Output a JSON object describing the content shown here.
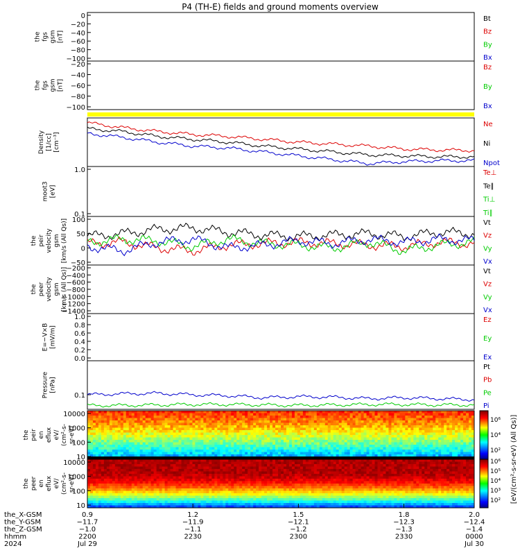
{
  "chart_data": {
    "type": "line",
    "title": "P4 (TH-E) fields and ground moments overview",
    "colors": {
      "black": "#000000",
      "red": "#dd0000",
      "green": "#00cc00",
      "blue": "#0000cc",
      "yellow": "#ffff00",
      "spectrogram": "jet"
    },
    "panels": [
      {
        "id": "fgs-gsm-1",
        "type": "line",
        "ylabel": [
          "the",
          "fgs",
          "gsm",
          "[nT]"
        ],
        "yticks": [
          "0",
          "−20",
          "−40",
          "−60",
          "−80",
          "−100"
        ],
        "ylim": [
          -100,
          0
        ],
        "legend": [
          {
            "name": "Bt",
            "color": "black"
          },
          {
            "name": "Bz",
            "color": "red"
          },
          {
            "name": "By",
            "color": "green"
          },
          {
            "name": "Bx",
            "color": "blue"
          }
        ],
        "series": []
      },
      {
        "id": "fgs-gsm-2",
        "type": "line",
        "ylabel": [
          "the",
          "fgs",
          "gsm",
          "[nT]"
        ],
        "yticks": [
          "−20",
          "−40",
          "−60",
          "−80",
          "−100"
        ],
        "ylim": [
          -110,
          0
        ],
        "legend": [
          {
            "name": "Bz",
            "color": "red"
          },
          {
            "name": "By",
            "color": "green"
          },
          {
            "name": "Bx",
            "color": "blue"
          }
        ],
        "series": []
      },
      {
        "id": "flag-bar",
        "type": "bar",
        "ylabel": [],
        "yticks": [],
        "legend": [],
        "series": [
          {
            "color": "yellow",
            "value": 1
          }
        ]
      },
      {
        "id": "density",
        "type": "line",
        "ylabel": [
          "Density",
          "[1/cc]",
          "[cm⁻³]"
        ],
        "yticks": [],
        "log": true,
        "legend": [
          {
            "name": "Ne",
            "color": "red"
          },
          {
            "name": "Ni",
            "color": "black"
          },
          {
            "name": "Npot",
            "color": "blue"
          }
        ],
        "series": [
          {
            "color": "red",
            "x": [
              0.9,
              1.0,
              1.1,
              1.2,
              1.3,
              1.4,
              1.5,
              1.6,
              1.7,
              1.8,
              1.9,
              2.0
            ],
            "y": [
              0.9,
              0.8,
              0.72,
              0.66,
              0.62,
              0.56,
              0.5,
              0.46,
              0.42,
              0.36,
              0.34,
              0.33
            ]
          },
          {
            "color": "black",
            "x": [
              0.9,
              1.0,
              1.1,
              1.2,
              1.3,
              1.4,
              1.5,
              1.6,
              1.7,
              1.8,
              1.9,
              2.0
            ],
            "y": [
              0.78,
              0.72,
              0.62,
              0.56,
              0.5,
              0.42,
              0.36,
              0.3,
              0.24,
              0.22,
              0.2,
              0.2
            ]
          },
          {
            "color": "blue",
            "x": [
              0.9,
              1.0,
              1.1,
              1.2,
              1.3,
              1.4,
              1.5,
              1.6,
              1.7,
              1.8,
              1.9,
              2.0
            ],
            "y": [
              0.68,
              0.6,
              0.5,
              0.42,
              0.38,
              0.3,
              0.22,
              0.14,
              0.06,
              0.1,
              0.12,
              0.12
            ]
          }
        ]
      },
      {
        "id": "temperature",
        "type": "line",
        "ylabel": [
          "moot3",
          "[eV]"
        ],
        "yticks": [
          "1.0",
          "0.1"
        ],
        "log": true,
        "legend": [
          {
            "name": "Te⊥",
            "color": "red"
          },
          {
            "name": "Te∥",
            "color": "black"
          },
          {
            "name": "Ti⊥",
            "color": "green"
          },
          {
            "name": "Ti∥",
            "color": "green"
          }
        ],
        "series": []
      },
      {
        "id": "peir-velocity",
        "type": "line",
        "ylabel": [
          "the",
          "peir",
          "velocity",
          "gsm",
          "[km/s (All Qs)]"
        ],
        "yticks": [
          "100",
          "50",
          "0",
          "−50"
        ],
        "ylim": [
          -70,
          100
        ],
        "legend": [
          {
            "name": "Vt",
            "color": "black"
          },
          {
            "name": "Vz",
            "color": "red"
          },
          {
            "name": "Vy",
            "color": "green"
          },
          {
            "name": "Vx",
            "color": "blue"
          }
        ],
        "series": [
          {
            "color": "black",
            "x": [
              0.9,
              1.0,
              1.1,
              1.2,
              1.3,
              1.4,
              1.5,
              1.6,
              1.7,
              1.8,
              1.9,
              2.0
            ],
            "y": [
              30,
              40,
              55,
              60,
              45,
              35,
              30,
              35,
              40,
              30,
              45,
              40
            ]
          },
          {
            "color": "red",
            "x": [
              0.9,
              1.0,
              1.1,
              1.2,
              1.3,
              1.4,
              1.5,
              1.6,
              1.7,
              1.8,
              1.9,
              2.0
            ],
            "y": [
              5,
              10,
              -10,
              -20,
              0,
              5,
              10,
              5,
              0,
              -5,
              10,
              5
            ]
          },
          {
            "color": "green",
            "x": [
              0.9,
              1.0,
              1.1,
              1.2,
              1.3,
              1.4,
              1.5,
              1.6,
              1.7,
              1.8,
              1.9,
              2.0
            ],
            "y": [
              10,
              20,
              15,
              -5,
              20,
              5,
              0,
              -10,
              10,
              -20,
              0,
              10
            ]
          },
          {
            "color": "blue",
            "x": [
              0.9,
              1.0,
              1.1,
              1.2,
              1.3,
              1.4,
              1.5,
              1.6,
              1.7,
              1.8,
              1.9,
              2.0
            ],
            "y": [
              -5,
              -20,
              10,
              20,
              -10,
              0,
              15,
              5,
              20,
              10,
              20,
              15
            ]
          }
        ]
      },
      {
        "id": "peer-velocity",
        "type": "line",
        "ylabel": [
          "the",
          "peer",
          "velocity",
          "gsm",
          "[km/s (All Qs)]"
        ],
        "yticks": [
          "−200",
          "−400",
          "−600",
          "−800",
          "−1000",
          "−1200",
          "−1400"
        ],
        "ylim": [
          -1450,
          0
        ],
        "legend": [
          {
            "name": "Vt",
            "color": "black"
          },
          {
            "name": "Vz",
            "color": "red"
          },
          {
            "name": "Vy",
            "color": "green"
          },
          {
            "name": "Vx",
            "color": "blue"
          }
        ],
        "series": []
      },
      {
        "id": "efield",
        "type": "line",
        "ylabel": [
          "E=−V×B",
          "[mV/m]"
        ],
        "yticks": [
          "1.0",
          "0.8",
          "0.6",
          "0.4",
          "0.2",
          "0.0"
        ],
        "ylim": [
          0,
          1
        ],
        "legend": [
          {
            "name": "Ez",
            "color": "red"
          },
          {
            "name": "Ey",
            "color": "green"
          },
          {
            "name": "Ex",
            "color": "blue"
          }
        ],
        "series": []
      },
      {
        "id": "pressure",
        "type": "line",
        "ylabel": [
          "Pressure",
          "[nPa]"
        ],
        "yticks": [
          "0.1"
        ],
        "log": true,
        "legend": [
          {
            "name": "Pt",
            "color": "black"
          },
          {
            "name": "Pb",
            "color": "red"
          },
          {
            "name": "Pe",
            "color": "green"
          },
          {
            "name": "Pi",
            "color": "blue"
          }
        ],
        "series": [
          {
            "color": "blue",
            "x": [
              0.9,
              1.0,
              1.1,
              1.2,
              1.3,
              1.4,
              1.5,
              1.6,
              1.7,
              1.8,
              1.9,
              2.0
            ],
            "y": [
              0.3,
              0.32,
              0.33,
              0.3,
              0.28,
              0.24,
              0.26,
              0.25,
              0.22,
              0.24,
              0.22,
              0.2
            ]
          },
          {
            "color": "green",
            "x": [
              0.9,
              1.0,
              1.1,
              1.2,
              1.3,
              1.4,
              1.5,
              1.6,
              1.7,
              1.8,
              1.9,
              2.0
            ],
            "y": [
              0.08,
              0.08,
              0.09,
              0.1,
              0.1,
              0.09,
              0.08,
              0.09,
              0.1,
              0.1,
              0.09,
              0.09
            ]
          }
        ]
      },
      {
        "id": "peir-en-eflux",
        "type": "heatmap",
        "ylabel": [
          "the",
          "peir",
          "en",
          "eflux",
          "eV/",
          "(cm²-s-",
          "sr-eV)"
        ],
        "yticks": [
          "10000",
          "1000",
          "100",
          "10"
        ],
        "log": true,
        "legend": [],
        "series": []
      },
      {
        "id": "peer-en-eflux",
        "type": "heatmap",
        "ylabel": [
          "the",
          "peer",
          "en",
          "eflux",
          "eV/",
          "(cm²-s-",
          "sr-eV)"
        ],
        "yticks": [
          "10000",
          "1000",
          "100",
          "10"
        ],
        "log": true,
        "legend": [],
        "series": []
      }
    ],
    "colorbar": {
      "label": "[eV/(cm²-s-sr-eV) (All Qs)]",
      "ticks_top": [
        "10⁶",
        "10⁴",
        "10²"
      ],
      "ticks_bottom": [
        "10⁶",
        "10⁵",
        "10⁴",
        "10³",
        "10²"
      ]
    },
    "xaxis": {
      "ticks": [
        0.9,
        1.2,
        1.5,
        1.8,
        2.0
      ],
      "xlim": [
        0.9,
        2.0
      ],
      "rows": [
        {
          "label": "the_X-GSM",
          "values": [
            "0.9",
            "1.2",
            "1.5",
            "1.8",
            "2.0"
          ]
        },
        {
          "label": "the_Y-GSM",
          "values": [
            "−11.7",
            "−11.9",
            "−12.1",
            "−12.3",
            "−12.4"
          ]
        },
        {
          "label": "the_Z-GSM",
          "values": [
            "−1.0",
            "−1.1",
            "−1.2",
            "−1.3",
            "−1.4"
          ]
        },
        {
          "label": "hhmm",
          "values": [
            "2200",
            "2230",
            "2300",
            "2330",
            "0000"
          ]
        },
        {
          "label": "2024",
          "values": [
            "Jul 29",
            "",
            "",
            "",
            "Jul 30"
          ]
        }
      ]
    }
  }
}
